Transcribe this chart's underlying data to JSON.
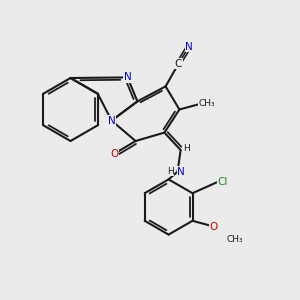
{
  "background_color": "#ebebeb",
  "figsize": [
    3.0,
    3.0
  ],
  "dpi": 100,
  "bond_color": "#1a1a1a",
  "bond_lw": 1.5,
  "atom_colors": {
    "N": "#0000cc",
    "O": "#cc0000",
    "Cl": "#228822",
    "C": "#1a1a1a",
    "H": "#1a1a1a"
  },
  "font_size": 7.5,
  "font_size_small": 6.5
}
